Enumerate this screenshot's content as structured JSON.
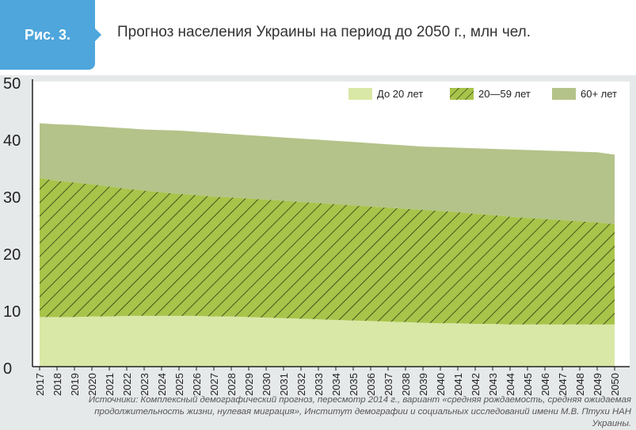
{
  "figure": {
    "tag": "Рис. 3.",
    "title": "Прогноз населения Украины на период до 2050 г., млн чел."
  },
  "colors": {
    "header_tag": "#4ea6dc",
    "under20": "#d9e8a6",
    "age20_59": "#a8c44a",
    "age20_59_hatch": "#2b3a12",
    "age60plus": "#b4c389"
  },
  "chart_data": {
    "type": "area",
    "stacked": true,
    "title": "Прогноз населения Украины на период до 2050 г., млн чел.",
    "xlabel": "",
    "ylabel": "",
    "ylim": [
      0,
      50
    ],
    "yticks": [
      0,
      10,
      20,
      30,
      40,
      50
    ],
    "legend_position": "top-right",
    "x": [
      2017,
      2018,
      2019,
      2020,
      2021,
      2022,
      2023,
      2024,
      2025,
      2026,
      2027,
      2028,
      2029,
      2030,
      2031,
      2032,
      2033,
      2034,
      2035,
      2036,
      2037,
      2038,
      2039,
      2040,
      2041,
      2042,
      2043,
      2044,
      2045,
      2046,
      2047,
      2048,
      2049,
      2050
    ],
    "series": [
      {
        "name": "До 20 лет",
        "key": "under20",
        "values": [
          8.7,
          8.7,
          8.7,
          8.8,
          8.8,
          8.9,
          8.9,
          8.9,
          8.9,
          8.9,
          8.8,
          8.8,
          8.7,
          8.6,
          8.5,
          8.4,
          8.3,
          8.2,
          8.1,
          8.0,
          7.9,
          7.8,
          7.7,
          7.6,
          7.6,
          7.5,
          7.5,
          7.4,
          7.4,
          7.4,
          7.4,
          7.4,
          7.4,
          7.4
        ]
      },
      {
        "name": "20—59 лет",
        "key": "age20_59",
        "values": [
          24.4,
          23.9,
          23.6,
          23.2,
          22.8,
          22.3,
          22.0,
          21.7,
          21.4,
          21.2,
          21.0,
          20.9,
          20.8,
          20.7,
          20.6,
          20.5,
          20.4,
          20.3,
          20.2,
          20.1,
          20.0,
          19.9,
          19.8,
          19.7,
          19.5,
          19.3,
          19.1,
          18.9,
          18.7,
          18.5,
          18.3,
          18.1,
          17.9,
          17.6
        ]
      },
      {
        "name": "60+ лет",
        "key": "age60plus",
        "values": [
          9.6,
          9.9,
          10.1,
          10.2,
          10.4,
          10.6,
          10.7,
          10.9,
          11.1,
          11.1,
          11.2,
          11.1,
          11.1,
          11.1,
          11.1,
          11.1,
          11.1,
          11.1,
          11.1,
          11.1,
          11.1,
          11.1,
          11.1,
          11.2,
          11.3,
          11.5,
          11.6,
          11.8,
          11.9,
          12.0,
          12.1,
          12.2,
          12.3,
          12.2
        ]
      }
    ]
  },
  "source": "Источники: Комплексный демографический прогноз, пересмотр 2014 г., вариант «средняя рождаемость, средняя ожидаемая продолжительность жизни, нулевая миграция», Институт демографии и социальных исследований имени М.В. Птухи НАН Украины."
}
